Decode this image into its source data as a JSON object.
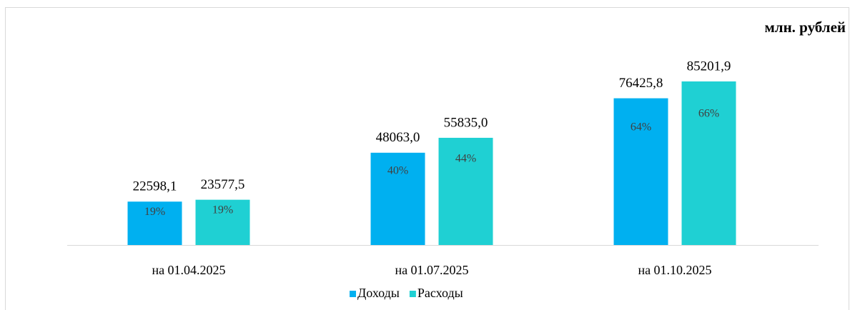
{
  "chart_data": {
    "type": "bar",
    "unit_label": "млн. рублей",
    "categories": [
      "на 01.04.2025",
      "на 01.07.2025",
      "на 01.10.2025"
    ],
    "series": [
      {
        "name": "Доходы",
        "color": "#00b0f0",
        "values": [
          22598.1,
          48063.0,
          76425.8
        ],
        "value_labels": [
          "22598,1",
          "48063,0",
          "76425,8"
        ],
        "share_values": [
          19,
          40,
          64
        ],
        "share_labels": [
          "19%",
          "40%",
          "64%"
        ]
      },
      {
        "name": "Расходы",
        "color": "#1fd0d3",
        "values": [
          23577.5,
          55835.0,
          85201.9
        ],
        "value_labels": [
          "23577,5",
          "55835,0",
          "85201,9"
        ],
        "share_values": [
          19,
          44,
          66
        ],
        "share_labels": [
          "19%",
          "44%",
          "66%"
        ]
      }
    ],
    "legend": "bottom"
  }
}
